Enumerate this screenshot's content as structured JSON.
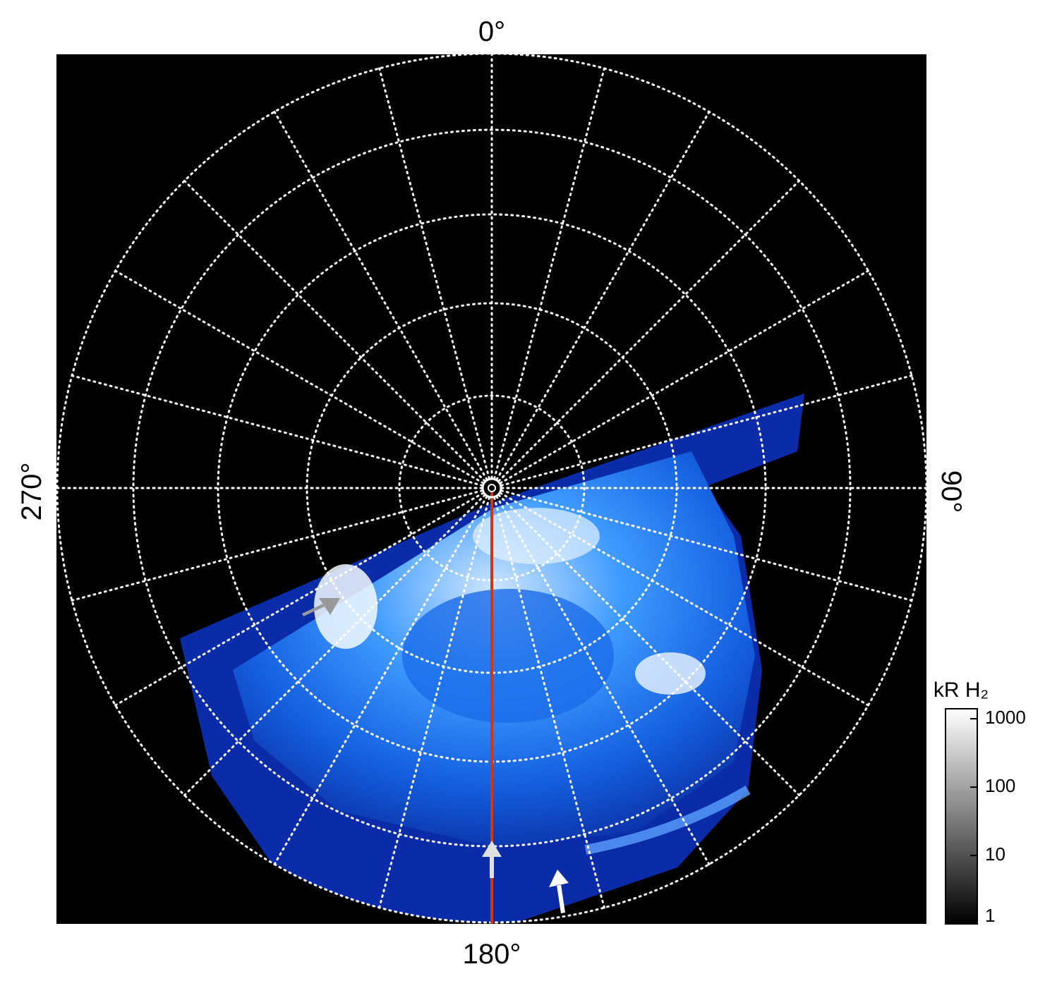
{
  "labels": {
    "top": "0°",
    "right": "90°",
    "bottom": "180°",
    "left": "270°"
  },
  "colorbar": {
    "title": "kR H₂",
    "scale": "log",
    "lim": [
      1,
      1400
    ],
    "ticks": [
      1,
      10,
      100,
      1000
    ]
  }
}
